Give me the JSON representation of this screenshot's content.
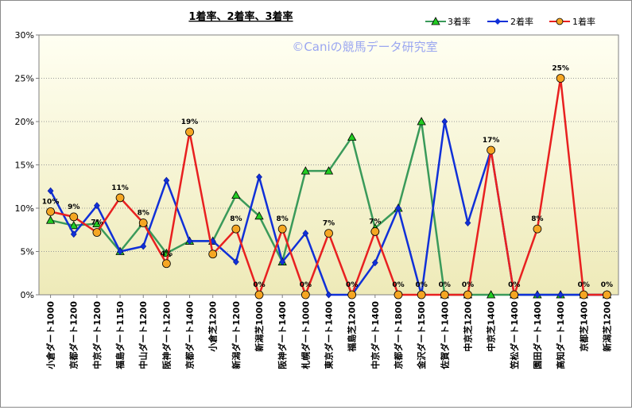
{
  "watermark": "©Caniの競馬データ研究室",
  "colors": {
    "third": "#3a9a5a",
    "second": "#1030d8",
    "first": "#e82020",
    "first_marker_fill": "#f5a623",
    "third_marker_fill": "#22cc22",
    "plot_bg_top": "#fffff2",
    "plot_bg_bottom": "#eeeab8"
  },
  "chart_data": {
    "type": "line",
    "title": "1着率、2着率、3着率",
    "xlabel": "",
    "ylabel": "",
    "ylim": [
      0,
      30
    ],
    "yticks": [
      "0%",
      "5%",
      "10%",
      "15%",
      "20%",
      "25%",
      "30%"
    ],
    "grid": "horizontal dotted",
    "legend_position": "top-right",
    "categories": [
      "小倉ダート1000",
      "京都ダート1200",
      "中京ダート1200",
      "福島ダート1150",
      "中山ダート1200",
      "阪神ダート1200",
      "京都ダート1400",
      "小倉芝1200",
      "新潟ダート1200",
      "新潟芝1000",
      "阪神ダート1400",
      "札幌ダート1000",
      "東京ダート1400",
      "福島芝1200",
      "中京ダート1400",
      "京都ダート1800",
      "金沢ダート1500",
      "佐賀ダート1400",
      "中京芝1200",
      "中京芝1400",
      "笠松ダート1400",
      "園田ダート1400",
      "高知ダート1400",
      "京都芝1400",
      "新潟芝1200"
    ],
    "series": [
      {
        "name": "3着率",
        "values": [
          8.6,
          8.0,
          8.2,
          5.0,
          8.3,
          4.8,
          6.2,
          6.2,
          11.5,
          9.1,
          3.8,
          14.3,
          14.3,
          18.2,
          7.7,
          10.0,
          20.0,
          0,
          0,
          0,
          0,
          0,
          0,
          0,
          0
        ]
      },
      {
        "name": "2着率",
        "values": [
          12.0,
          7.0,
          10.3,
          5.0,
          5.6,
          13.2,
          6.2,
          6.2,
          3.8,
          13.6,
          3.8,
          7.1,
          0,
          0,
          3.7,
          10.0,
          0,
          20.0,
          8.3,
          16.7,
          0,
          0,
          0,
          0,
          0
        ]
      },
      {
        "name": "1着率",
        "values": [
          9.6,
          9.0,
          7.2,
          11.2,
          8.3,
          3.6,
          18.8,
          4.7,
          7.6,
          0,
          7.6,
          0,
          7.1,
          0,
          7.3,
          0,
          0,
          0,
          0,
          16.7,
          0,
          7.6,
          25.0,
          0,
          0
        ]
      }
    ],
    "data_labels_first": [
      "10%",
      "9%",
      "7%",
      "11%",
      "8%",
      "4%",
      "19%",
      "",
      "8%",
      "0%",
      "8%",
      "0%",
      "7%",
      "0%",
      "7%",
      "0%",
      "0%",
      "0%",
      "0%",
      "17%",
      "0%",
      "8%",
      "25%",
      "0%",
      "0%"
    ]
  }
}
